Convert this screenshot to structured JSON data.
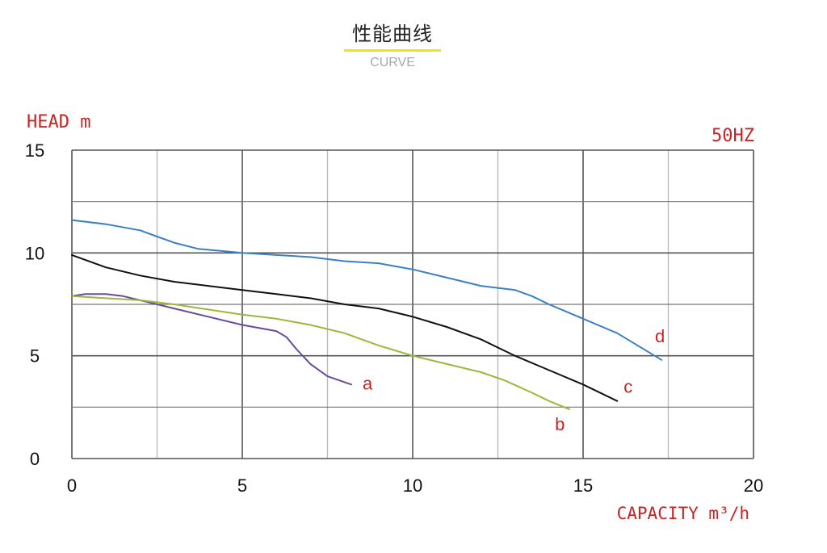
{
  "header": {
    "title": "性能曲线",
    "subtitle": "CURVE"
  },
  "chart_data": {
    "type": "line",
    "title": "性能曲线",
    "subtitle": "CURVE",
    "ylabel": "HEAD m",
    "xlabel": "CAPACITY m³/h",
    "annotation": "50HZ",
    "xlim": [
      0,
      20
    ],
    "ylim": [
      0,
      15
    ],
    "x_ticks": [
      0,
      5,
      10,
      15,
      20
    ],
    "y_ticks": [
      0,
      5,
      10,
      15
    ],
    "grid": true,
    "series": [
      {
        "name": "a",
        "color": "#6a4a9a",
        "points": [
          [
            0,
            7.9
          ],
          [
            0.4,
            8.0
          ],
          [
            1.0,
            8.0
          ],
          [
            1.5,
            7.9
          ],
          [
            2.0,
            7.7
          ],
          [
            3.0,
            7.3
          ],
          [
            4.0,
            6.9
          ],
          [
            5.0,
            6.5
          ],
          [
            6.0,
            6.2
          ],
          [
            6.3,
            5.9
          ],
          [
            6.6,
            5.3
          ],
          [
            7.0,
            4.6
          ],
          [
            7.5,
            4.0
          ],
          [
            8.2,
            3.6
          ]
        ]
      },
      {
        "name": "b",
        "color": "#9ab83a",
        "points": [
          [
            0,
            7.9
          ],
          [
            1,
            7.8
          ],
          [
            2,
            7.7
          ],
          [
            3,
            7.5
          ],
          [
            4,
            7.25
          ],
          [
            5,
            7.0
          ],
          [
            6,
            6.8
          ],
          [
            7,
            6.5
          ],
          [
            8,
            6.1
          ],
          [
            9,
            5.5
          ],
          [
            10,
            5.0
          ],
          [
            11,
            4.6
          ],
          [
            12,
            4.2
          ],
          [
            12.7,
            3.8
          ],
          [
            13.5,
            3.2
          ],
          [
            14,
            2.8
          ],
          [
            14.6,
            2.4
          ]
        ]
      },
      {
        "name": "c",
        "color": "#111111",
        "points": [
          [
            0,
            9.9
          ],
          [
            1,
            9.3
          ],
          [
            2,
            8.9
          ],
          [
            3,
            8.6
          ],
          [
            4,
            8.4
          ],
          [
            5,
            8.2
          ],
          [
            6,
            8.0
          ],
          [
            7,
            7.8
          ],
          [
            8,
            7.5
          ],
          [
            9,
            7.3
          ],
          [
            10,
            6.9
          ],
          [
            11,
            6.4
          ],
          [
            12,
            5.8
          ],
          [
            13,
            5.0
          ],
          [
            14,
            4.3
          ],
          [
            15,
            3.6
          ],
          [
            16,
            2.8
          ]
        ]
      },
      {
        "name": "d",
        "color": "#3b7fc4",
        "points": [
          [
            0,
            11.6
          ],
          [
            1,
            11.4
          ],
          [
            2,
            11.1
          ],
          [
            2.5,
            10.8
          ],
          [
            3,
            10.5
          ],
          [
            3.7,
            10.2
          ],
          [
            5,
            10.0
          ],
          [
            6,
            9.9
          ],
          [
            7,
            9.8
          ],
          [
            8,
            9.6
          ],
          [
            9,
            9.5
          ],
          [
            10,
            9.2
          ],
          [
            11,
            8.8
          ],
          [
            12,
            8.4
          ],
          [
            13,
            8.2
          ],
          [
            13.5,
            7.9
          ],
          [
            14,
            7.5
          ],
          [
            15,
            6.8
          ],
          [
            16,
            6.1
          ],
          [
            17.3,
            4.8
          ]
        ]
      }
    ]
  }
}
